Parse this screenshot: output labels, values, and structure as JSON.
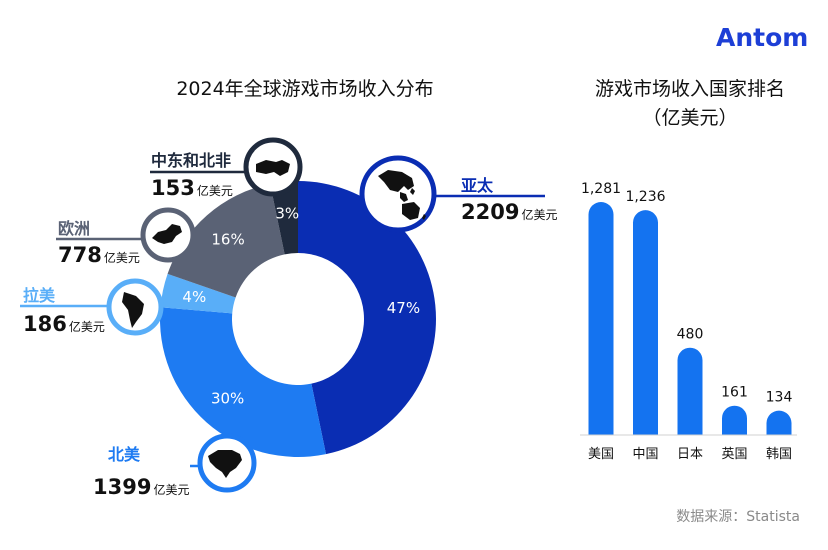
{
  "brand": {
    "logo_text": "Antom",
    "color": "#1d3fd6"
  },
  "source": "数据来源：Statista",
  "chart_data": [
    {
      "type": "pie",
      "title": "2024年全球游戏市场收入分布",
      "unit": "亿美元",
      "slices": [
        {
          "label": "亚太",
          "value": 2209,
          "value_text": "2209",
          "percent": "47%",
          "color": "#0a2db3"
        },
        {
          "label": "北美",
          "value": 1399,
          "value_text": "1399",
          "percent": "30%",
          "color": "#1e7bf2"
        },
        {
          "label": "拉美",
          "value": 186,
          "value_text": "186",
          "percent": "4%",
          "color": "#59aef8"
        },
        {
          "label": "欧洲",
          "value": 778,
          "value_text": "778",
          "percent": "16%",
          "color": "#5a6275"
        },
        {
          "label": "中东和北非",
          "value": 153,
          "value_text": "153",
          "percent": "3%",
          "color": "#1f2a3d"
        }
      ]
    },
    {
      "type": "bar",
      "title_line1": "游戏市场收入国家排名",
      "title_line2": "（亿美元）",
      "categories": [
        "美国",
        "中国",
        "日本",
        "英国",
        "韩国"
      ],
      "values": [
        1281,
        1236,
        480,
        161,
        134
      ],
      "value_labels": [
        "1,281",
        "1,236",
        "480",
        "161",
        "134"
      ],
      "bar_color": "#1473f0"
    }
  ]
}
